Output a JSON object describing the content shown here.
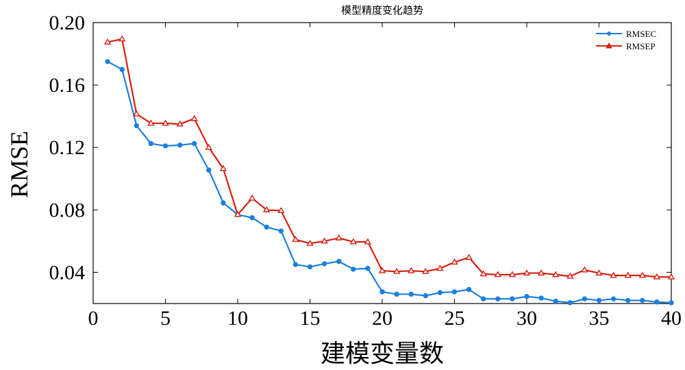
{
  "chart_data": {
    "type": "line",
    "title": "模型精度变化趋势",
    "xlabel": "建模变量数",
    "ylabel": "RMSE",
    "xlim": [
      0,
      40
    ],
    "ylim": [
      0.02,
      0.2
    ],
    "xticks": [
      0,
      5,
      10,
      15,
      20,
      25,
      30,
      35,
      40
    ],
    "yticks": [
      0.04,
      0.08,
      0.12,
      0.16,
      0.2
    ],
    "ytick_labels": [
      "0.04",
      "0.08",
      "0.12",
      "0.16",
      "0.20"
    ],
    "grid": false,
    "legend_position": "top-right",
    "x": [
      1,
      2,
      3,
      4,
      5,
      6,
      7,
      8,
      9,
      10,
      11,
      12,
      13,
      14,
      15,
      16,
      17,
      18,
      19,
      20,
      21,
      22,
      23,
      24,
      25,
      26,
      27,
      28,
      29,
      30,
      31,
      32,
      33,
      34,
      35,
      36,
      37,
      38,
      39,
      40
    ],
    "series": [
      {
        "name": "RMSEC",
        "color": "#1a7fe0",
        "marker": "circle",
        "values": [
          0.175,
          0.17,
          0.134,
          0.1225,
          0.121,
          0.1215,
          0.1225,
          0.1055,
          0.0845,
          0.077,
          0.075,
          0.069,
          0.0665,
          0.045,
          0.0435,
          0.0455,
          0.047,
          0.042,
          0.0425,
          0.0275,
          0.026,
          0.026,
          0.025,
          0.027,
          0.0275,
          0.029,
          0.023,
          0.023,
          0.023,
          0.0245,
          0.0235,
          0.0215,
          0.0205,
          0.023,
          0.022,
          0.023,
          0.022,
          0.022,
          0.021,
          0.0205
        ]
      },
      {
        "name": "RMSEP",
        "color": "#d81e0e",
        "marker": "triangle",
        "values": [
          0.1875,
          0.1895,
          0.1415,
          0.1355,
          0.1355,
          0.135,
          0.1385,
          0.12,
          0.1065,
          0.077,
          0.0875,
          0.08,
          0.0795,
          0.061,
          0.0585,
          0.06,
          0.062,
          0.0595,
          0.0595,
          0.041,
          0.0405,
          0.041,
          0.0405,
          0.0425,
          0.0465,
          0.0495,
          0.039,
          0.0385,
          0.0385,
          0.0395,
          0.0395,
          0.0385,
          0.0375,
          0.0415,
          0.0395,
          0.038,
          0.038,
          0.038,
          0.037,
          0.037
        ]
      }
    ]
  }
}
